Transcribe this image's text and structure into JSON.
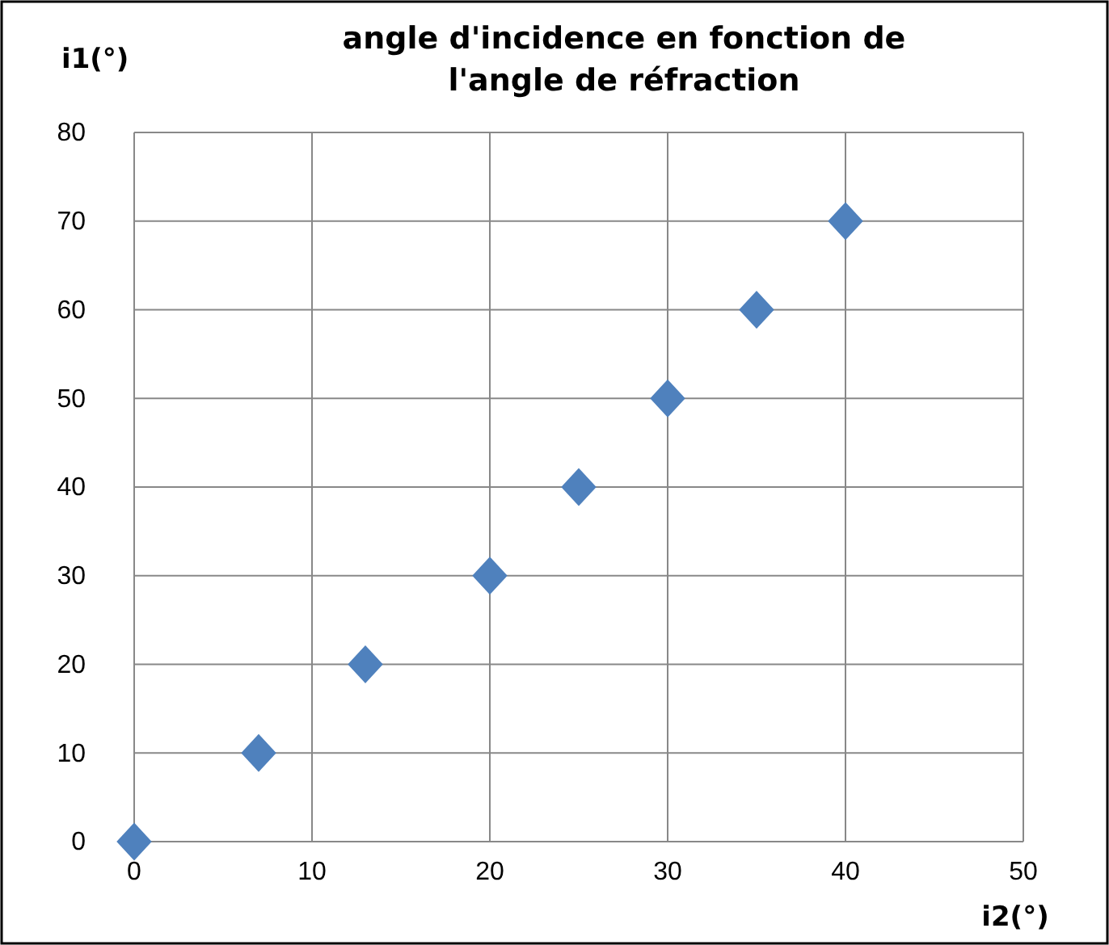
{
  "chart_data": {
    "type": "scatter",
    "title": "angle d'incidence en fonction de l'angle de réfraction",
    "xlabel": "i2(°)",
    "ylabel": "i1(°)",
    "x": [
      0,
      7,
      13,
      20,
      25,
      30,
      35,
      40
    ],
    "series": [
      {
        "color": "#4f81bd",
        "values": [
          0,
          10,
          20,
          30,
          40,
          50,
          60,
          70
        ]
      }
    ],
    "xlim": [
      0,
      50
    ],
    "xticks": [
      0,
      10,
      20,
      30,
      40,
      50
    ],
    "ylim": [
      0,
      80
    ],
    "yticks": [
      0,
      10,
      20,
      30,
      40,
      50,
      60,
      70,
      80
    ],
    "grid": true,
    "marker": "diamond"
  }
}
